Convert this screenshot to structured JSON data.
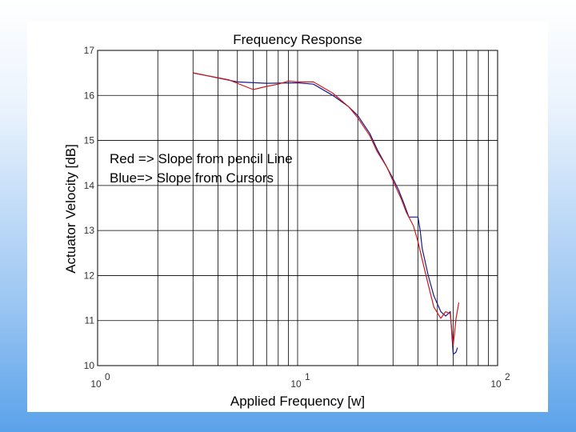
{
  "chart_data": {
    "type": "line",
    "title": "Frequency Response",
    "xlabel": "Applied Frequency [w]",
    "ylabel": "Actuator Velocity  [dB]",
    "xscale": "log",
    "xlim": [
      1,
      100
    ],
    "ylim": [
      10,
      17
    ],
    "x_tick_labels": [
      {
        "base": "10",
        "exp": "0"
      },
      {
        "base": "10",
        "exp": "1"
      },
      {
        "base": "10",
        "exp": "2"
      }
    ],
    "y_ticks": [
      "10",
      "11",
      "12",
      "13",
      "14",
      "15",
      "16",
      "17"
    ],
    "grid": true,
    "annotations": [
      "Red => Slope from pencil Line",
      "Blue=> Slope from Cursors"
    ],
    "series": [
      {
        "color": "#1a1a8c",
        "x": [
          3.0,
          5.0,
          7.0,
          10.0,
          12.0,
          15.0,
          18.0,
          20.0,
          23.0,
          25.0,
          28.0,
          30.0,
          32.0,
          34.0,
          36.0,
          38.0,
          40.0,
          41.0,
          42.0,
          45.0,
          48.0,
          52.0,
          55.0,
          58.0,
          60.0,
          62.0,
          63.0
        ],
        "y": [
          16.5,
          16.3,
          16.27,
          16.28,
          16.25,
          16.0,
          15.75,
          15.55,
          15.15,
          14.8,
          14.4,
          14.15,
          13.9,
          13.6,
          13.3,
          13.3,
          13.3,
          13.0,
          12.6,
          12.0,
          11.55,
          11.2,
          11.1,
          11.2,
          10.25,
          10.3,
          10.4
        ]
      },
      {
        "color": "#cc1a1a",
        "x": [
          3.0,
          4.5,
          6.0,
          7.0,
          8.0,
          9.0,
          10.0,
          12.0,
          15.0,
          18.0,
          20.0,
          23.0,
          25.0,
          28.0,
          30.0,
          33.0,
          35.0,
          38.0,
          40.0,
          42.0,
          45.0,
          48.0,
          52.0,
          55.0,
          58.0,
          60.0,
          62.0,
          64.0
        ],
        "y": [
          16.5,
          16.35,
          16.13,
          16.2,
          16.25,
          16.32,
          16.3,
          16.3,
          16.05,
          15.75,
          15.5,
          15.1,
          14.75,
          14.4,
          14.1,
          13.7,
          13.4,
          13.1,
          12.75,
          12.35,
          11.8,
          11.3,
          11.05,
          11.2,
          11.15,
          10.45,
          11.05,
          11.4
        ]
      }
    ]
  }
}
